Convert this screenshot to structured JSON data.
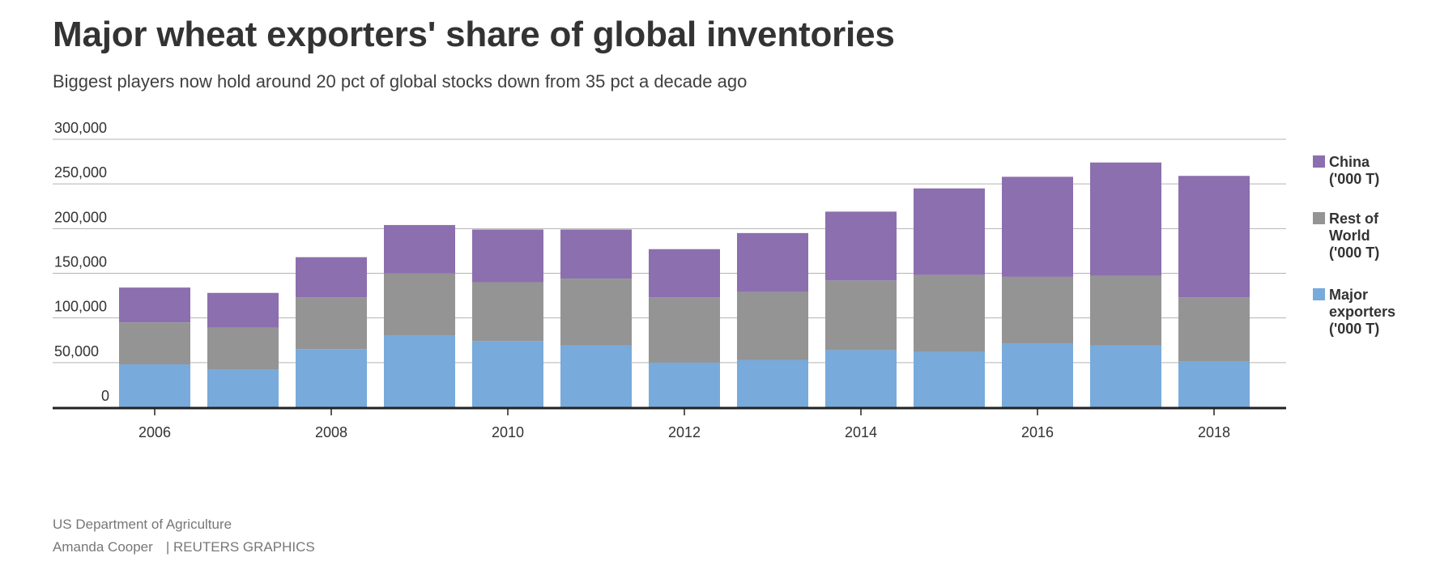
{
  "title": "Major wheat exporters' share of global inventories",
  "subtitle": "Biggest players now hold around 20 pct of global stocks down from 35 pct a decade ago",
  "footer": {
    "source": "US Department of Agriculture",
    "author": "Amanda Cooper",
    "brand": "| REUTERS GRAPHICS"
  },
  "colors": {
    "china": "#8c6fae",
    "rest_of_world": "#949494",
    "major_exporters": "#78aadb",
    "gridline": "#b3b3b3",
    "baseline": "#222222"
  },
  "chart_data": {
    "type": "bar",
    "stacked": true,
    "categories": [
      "2006",
      "2007",
      "2008",
      "2009",
      "2010",
      "2011",
      "2012",
      "2013",
      "2014",
      "2015",
      "2016",
      "2017",
      "2018"
    ],
    "x_tick_labels": [
      "2006",
      "2008",
      "2010",
      "2012",
      "2014",
      "2016",
      "2018"
    ],
    "series": [
      {
        "name": "Major exporters ('000 T)",
        "values": [
          48000,
          42000,
          65000,
          80000,
          74000,
          69000,
          50000,
          53000,
          64000,
          62000,
          71000,
          69000,
          51000
        ]
      },
      {
        "name": "Rest of World ('000 T)",
        "values": [
          47000,
          47000,
          58000,
          70000,
          66000,
          75000,
          73000,
          76000,
          78000,
          86000,
          75000,
          78000,
          72000
        ]
      },
      {
        "name": "China ('000 T)",
        "values": [
          39000,
          39000,
          45000,
          54000,
          59000,
          55000,
          54000,
          66000,
          77000,
          97000,
          112000,
          127000,
          136000
        ]
      }
    ],
    "legend": [
      {
        "lines": [
          "China",
          "('000 T)"
        ],
        "series": 2
      },
      {
        "lines": [
          "Rest of",
          "World",
          "('000 T)"
        ],
        "series": 1
      },
      {
        "lines": [
          "Major",
          "exporters",
          "('000 T)"
        ],
        "series": 0
      }
    ],
    "y_ticks": [
      0,
      50000,
      100000,
      150000,
      200000,
      250000,
      300000
    ],
    "y_tick_labels": [
      "0",
      "50,000",
      "100,000",
      "150,000",
      "200,000",
      "250,000",
      "300,000"
    ],
    "ylim": [
      0,
      300000
    ],
    "xlabel": "",
    "ylabel": "",
    "grid": true,
    "legend_position": "right"
  }
}
